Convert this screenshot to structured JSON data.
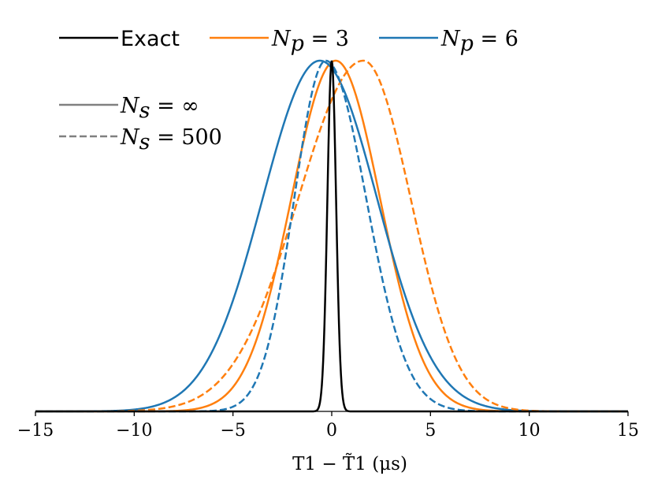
{
  "chart_data": {
    "type": "line",
    "xlabel": "T1 − T̃1 (μs)",
    "xlim": [
      -15,
      15
    ],
    "ylim": [
      0,
      1
    ],
    "x_ticks": [
      -15,
      -10,
      -5,
      0,
      5,
      10,
      15
    ],
    "x_tick_labels": [
      "−15",
      "−10",
      "−5",
      "0",
      "5",
      "10",
      "15"
    ],
    "y_axis_visible": false,
    "grid": false,
    "legend_top": {
      "placement": "top",
      "entries": [
        {
          "label": "Exact",
          "color": "#000000"
        },
        {
          "label": "Np = 3",
          "sym": "N",
          "sub": "p",
          "rest": " = 3",
          "color": "#ff7f0e"
        },
        {
          "label": "Np = 6",
          "sym": "N",
          "sub": "p",
          "rest": " = 6",
          "color": "#1f77b4"
        }
      ]
    },
    "legend_style": {
      "placement": "top-left",
      "entries": [
        {
          "label": "Ns = ∞",
          "sym": "N",
          "sub": "s",
          "rest": " = ∞",
          "dash": "solid",
          "color": "#808080"
        },
        {
          "label": "Ns = 500",
          "sym": "N",
          "sub": "s",
          "rest": " = 500",
          "dash": "dashed",
          "color": "#808080"
        }
      ]
    },
    "series": [
      {
        "name": "Exact",
        "color": "#000000",
        "dash": "solid",
        "mu": 0.0,
        "sigma_left": 0.22,
        "sigma_right": 0.22,
        "peak": 1.0
      },
      {
        "name": "Np = 3, Ns = ∞",
        "color": "#ff7f0e",
        "dash": "solid",
        "mu": 0.2,
        "sigma_left": 2.25,
        "sigma_right": 2.25,
        "peak": 1.0
      },
      {
        "name": "Np = 6, Ns = ∞",
        "color": "#1f77b4",
        "dash": "solid",
        "mu": -0.6,
        "sigma_left": 2.9,
        "sigma_right": 2.9,
        "peak": 1.0
      },
      {
        "name": "Np = 3, Ns = 500",
        "color": "#ff7f0e",
        "dash": "dashed",
        "mu": 1.6,
        "sigma_left": 3.3,
        "sigma_right": 2.4,
        "peak": 1.0
      },
      {
        "name": "Np = 6, Ns = 500",
        "color": "#1f77b4",
        "dash": "dashed",
        "mu": -0.3,
        "sigma_left": 1.6,
        "sigma_right": 2.05,
        "peak": 1.0
      }
    ]
  }
}
